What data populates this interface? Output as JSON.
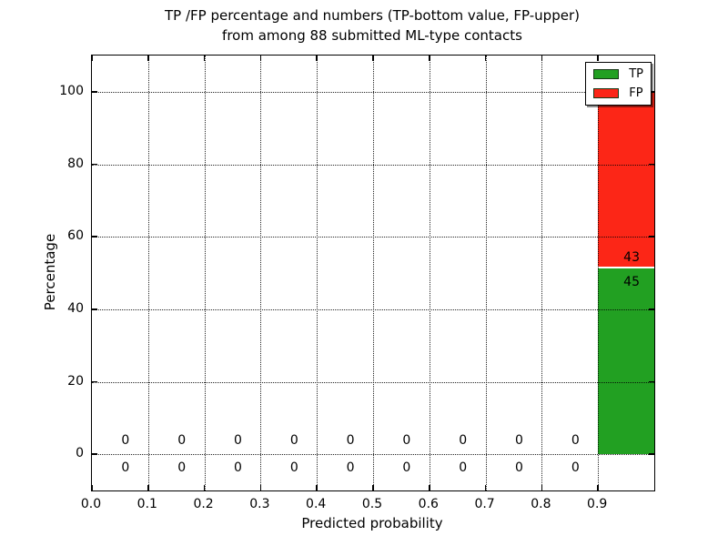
{
  "chart_data": {
    "type": "bar",
    "stacked": true,
    "title_line1": "TP /FP percentage and numbers (TP-bottom value, FP-upper)",
    "title_line2": "from among 88 submitted ML-type contacts",
    "xlabel": "Predicted probability",
    "ylabel": "Percentage",
    "total_contacts": 88,
    "xlim": [
      0.0,
      1.0
    ],
    "ylim": [
      -10,
      110
    ],
    "xticks": [
      "0.0",
      "0.1",
      "0.2",
      "0.3",
      "0.4",
      "0.5",
      "0.6",
      "0.7",
      "0.8",
      "0.9"
    ],
    "yticks": [
      0,
      20,
      40,
      60,
      80,
      100
    ],
    "grid": {
      "style": "dotted",
      "drawn_above_bars": true
    },
    "bin_width": 0.1,
    "bins": [
      {
        "x_center": 0.05,
        "tp": 0,
        "fp": 0
      },
      {
        "x_center": 0.15,
        "tp": 0,
        "fp": 0
      },
      {
        "x_center": 0.25,
        "tp": 0,
        "fp": 0
      },
      {
        "x_center": 0.35,
        "tp": 0,
        "fp": 0
      },
      {
        "x_center": 0.45,
        "tp": 0,
        "fp": 0
      },
      {
        "x_center": 0.55,
        "tp": 0,
        "fp": 0
      },
      {
        "x_center": 0.65,
        "tp": 0,
        "fp": 0
      },
      {
        "x_center": 0.75,
        "tp": 0,
        "fp": 0
      },
      {
        "x_center": 0.85,
        "tp": 0,
        "fp": 0
      },
      {
        "x_center": 0.95,
        "tp": 45,
        "fp": 43,
        "tp_pct": 51.1,
        "fp_pct": 48.9
      }
    ],
    "colors": {
      "tp": "#22a022",
      "fp": "#fc2617"
    },
    "legend": {
      "position": "upper right",
      "entries": [
        {
          "label": "TP",
          "color": "#22a022"
        },
        {
          "label": "FP",
          "color": "#fc2617"
        }
      ]
    }
  }
}
